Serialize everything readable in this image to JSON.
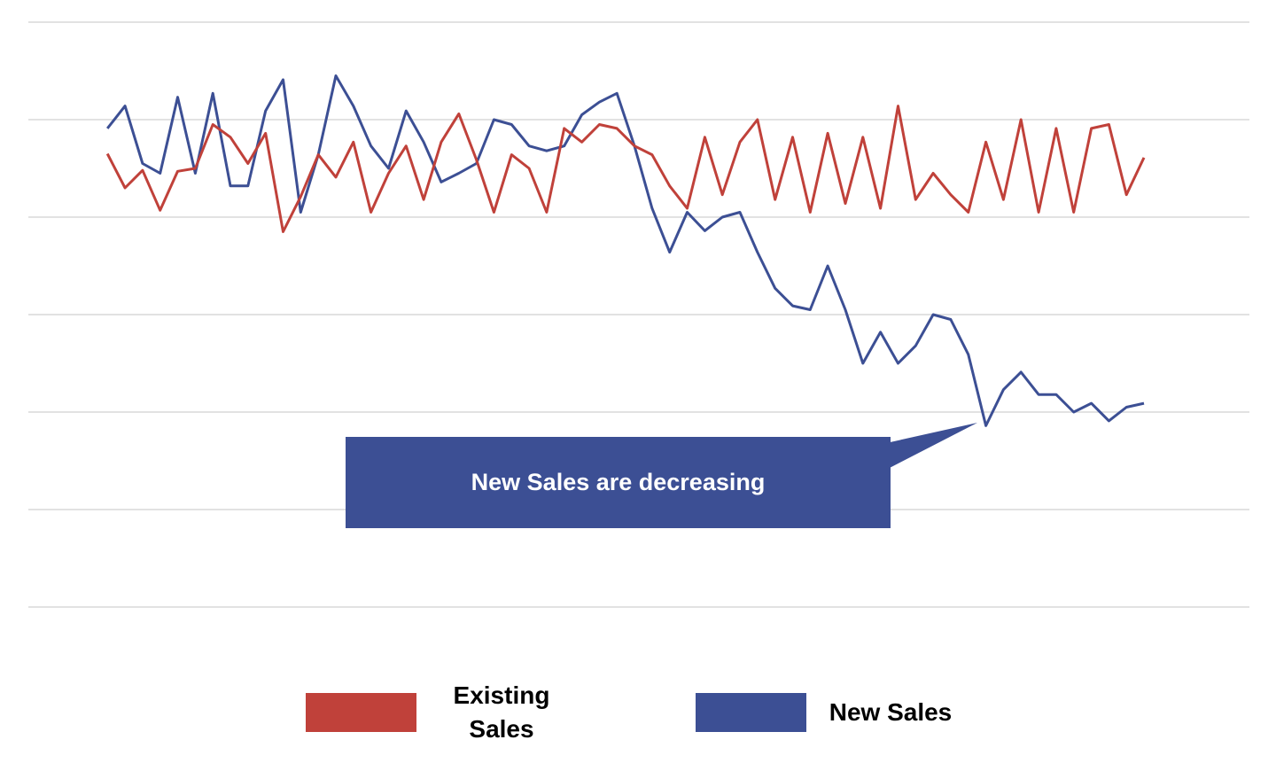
{
  "chart_data": {
    "type": "line",
    "ylim": [
      0,
      6
    ],
    "yticks": [
      0,
      1,
      2,
      3,
      4,
      5,
      6
    ],
    "xlim": [
      -4.5,
      65
    ],
    "grid": true,
    "series": [
      {
        "name": "Existing Sales",
        "color": "#c0413a",
        "values": [
          4.65,
          4.3,
          4.48,
          4.07,
          4.47,
          4.5,
          4.95,
          4.82,
          4.55,
          4.86,
          3.85,
          4.21,
          4.64,
          4.41,
          4.77,
          4.05,
          4.45,
          4.73,
          4.18,
          4.77,
          5.06,
          4.59,
          4.05,
          4.64,
          4.5,
          4.05,
          4.91,
          4.77,
          4.95,
          4.91,
          4.73,
          4.64,
          4.32,
          4.09,
          4.82,
          4.23,
          4.77,
          5.0,
          4.18,
          4.82,
          4.05,
          4.86,
          4.14,
          4.82,
          4.09,
          5.14,
          4.18,
          4.45,
          4.23,
          4.05,
          4.77,
          4.18,
          5.0,
          4.05,
          4.91,
          4.05,
          4.91,
          4.95,
          4.23,
          4.61
        ]
      },
      {
        "name": "New Sales",
        "color": "#3c4f94",
        "values": [
          4.91,
          5.14,
          4.55,
          4.45,
          5.23,
          4.45,
          5.27,
          4.32,
          4.32,
          5.09,
          5.41,
          4.05,
          4.64,
          5.45,
          5.14,
          4.73,
          4.5,
          5.09,
          4.77,
          4.36,
          4.45,
          4.55,
          5.0,
          4.95,
          4.73,
          4.68,
          4.73,
          5.05,
          5.18,
          5.27,
          4.73,
          4.09,
          3.64,
          4.05,
          3.86,
          4.0,
          4.05,
          3.64,
          3.27,
          3.09,
          3.05,
          3.5,
          3.05,
          2.5,
          2.82,
          2.5,
          2.68,
          3.0,
          2.95,
          2.59,
          1.86,
          2.23,
          2.41,
          2.18,
          2.18,
          2.0,
          2.09,
          1.91,
          2.05,
          2.09
        ]
      }
    ],
    "annotation": "New Sales are decreasing"
  }
}
